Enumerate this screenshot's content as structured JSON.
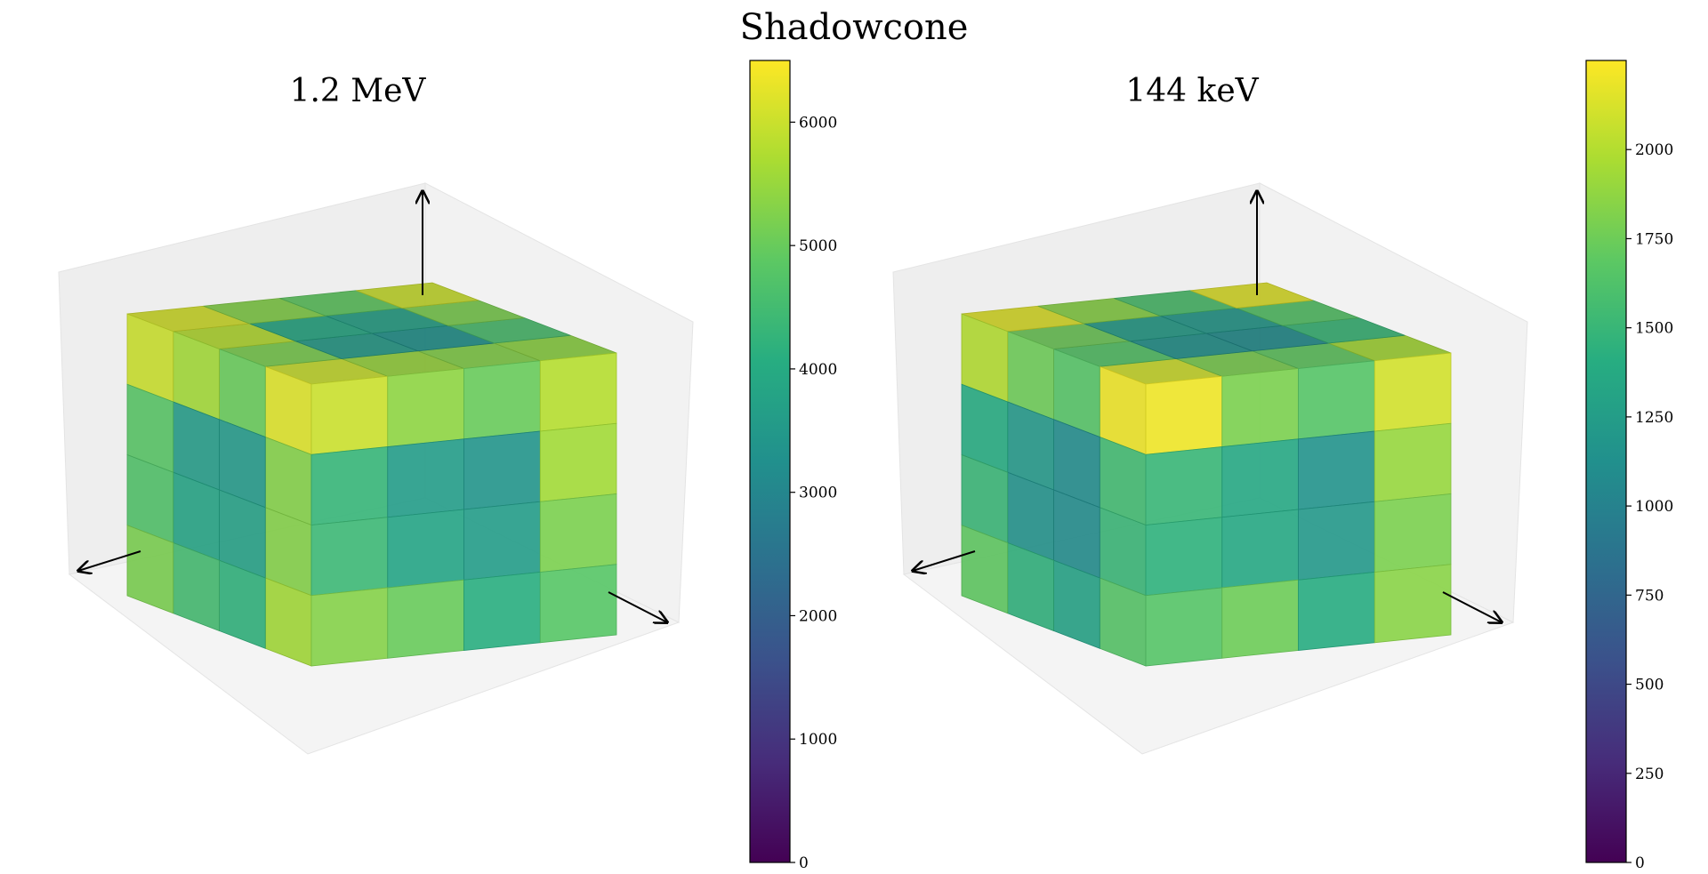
{
  "figure": {
    "title": "Shadowcone"
  },
  "chart_data": [
    {
      "type": "heatmap",
      "subtype": "3d-voxel",
      "title": "1.2 MeV",
      "colormap": "viridis",
      "colorbar": {
        "range": [
          0,
          6500
        ],
        "ticks": [
          0,
          1000,
          2000,
          3000,
          4000,
          5000,
          6000
        ],
        "tick_labels": [
          "0",
          "1000",
          "2000",
          "3000",
          "4000",
          "5000",
          "6000"
        ]
      },
      "grid": [
        4,
        4,
        4
      ],
      "top_face_values": [
        [
          6000,
          5500,
          5300,
          5400
        ],
        [
          5200,
          3600,
          3300,
          4600
        ],
        [
          5800,
          3900,
          3700,
          5200
        ],
        [
          6100,
          5300,
          4900,
          6000
        ]
      ],
      "front_face_values": [
        [
          6000,
          5400,
          5000,
          5800
        ],
        [
          4300,
          3600,
          3400,
          5600
        ],
        [
          4400,
          3800,
          3600,
          5200
        ],
        [
          5300,
          5000,
          4100,
          4800
        ]
      ],
      "left_face_values": [
        [
          6200,
          5000,
          5600,
          6000
        ],
        [
          5300,
          3500,
          3600,
          4800
        ],
        [
          5300,
          3700,
          3800,
          4700
        ],
        [
          5600,
          4200,
          4500,
          5200
        ]
      ]
    },
    {
      "type": "heatmap",
      "subtype": "3d-voxel",
      "title": "144 keV",
      "colormap": "viridis",
      "colorbar": {
        "range": [
          0,
          2250
        ],
        "ticks": [
          0,
          250,
          500,
          750,
          1000,
          1250,
          1500,
          1750,
          2000
        ],
        "tick_labels": [
          "0",
          "250",
          "500",
          "750",
          "1000",
          "1250",
          "1500",
          "1750",
          "2000"
        ]
      },
      "grid": [
        4,
        4,
        4
      ],
      "top_face_values": [
        [
          2100,
          1800,
          1700,
          1950
        ],
        [
          1650,
          1150,
          1100,
          1500
        ],
        [
          1750,
          1250,
          1200,
          1650
        ],
        [
          2150,
          1850,
          1600,
          2150
        ]
      ],
      "front_face_values": [
        [
          2200,
          1800,
          1650,
          2100
        ],
        [
          1500,
          1350,
          1150,
          1900
        ],
        [
          1450,
          1350,
          1200,
          1800
        ],
        [
          1650,
          1750,
          1400,
          1850
        ]
      ],
      "left_face_values": [
        [
          2200,
          1650,
          1750,
          2000
        ],
        [
          1550,
          1100,
          1200,
          1400
        ],
        [
          1500,
          1100,
          1150,
          1500
        ],
        [
          1650,
          1300,
          1450,
          1700
        ]
      ]
    }
  ]
}
